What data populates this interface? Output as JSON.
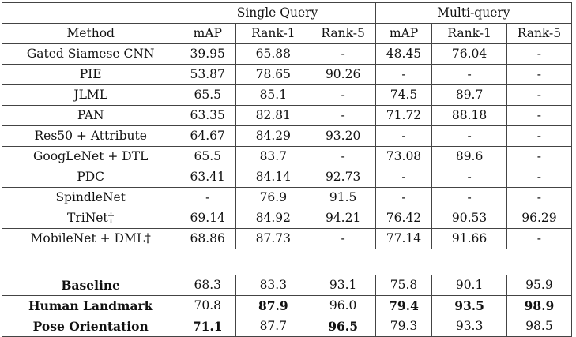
{
  "header": {
    "group1": "Single Query",
    "group2": "Multi-query",
    "method": "Method",
    "cols": [
      "mAP",
      "Rank-1",
      "Rank-5",
      "mAP",
      "Rank-1",
      "Rank-5"
    ]
  },
  "rows": [
    {
      "method": "Gated Siamese CNN",
      "values": [
        "39.95",
        "65.88",
        "-",
        "48.45",
        "76.04",
        "-"
      ]
    },
    {
      "method": "PIE",
      "values": [
        "53.87",
        "78.65",
        "90.26",
        "-",
        "-",
        "-"
      ]
    },
    {
      "method": "JLML",
      "values": [
        "65.5",
        "85.1",
        "-",
        "74.5",
        "89.7",
        "-"
      ]
    },
    {
      "method": "PAN",
      "values": [
        "63.35",
        "82.81",
        "-",
        "71.72",
        "88.18",
        "-"
      ]
    },
    {
      "method": "Res50 + Attribute",
      "values": [
        "64.67",
        "84.29",
        "93.20",
        "-",
        "-",
        "-"
      ]
    },
    {
      "method": "GoogLeNet + DTL",
      "values": [
        "65.5",
        "83.7",
        "-",
        "73.08",
        "89.6",
        "-"
      ]
    },
    {
      "method": "PDC",
      "values": [
        "63.41",
        "84.14",
        "92.73",
        "-",
        "-",
        "-"
      ]
    },
    {
      "method": "SpindleNet",
      "values": [
        "-",
        "76.9",
        "91.5",
        "-",
        "-",
        "-"
      ]
    },
    {
      "method": "TriNet†",
      "values": [
        "69.14",
        "84.92",
        "94.21",
        "76.42",
        "90.53",
        "96.29"
      ]
    },
    {
      "method": "MobileNet + DML†",
      "values": [
        "68.86",
        "87.73",
        "-",
        "77.14",
        "91.66",
        "-"
      ]
    }
  ],
  "ours": [
    {
      "method": "Baseline",
      "values": [
        "68.3",
        "83.3",
        "93.1",
        "75.8",
        "90.1",
        "95.9"
      ],
      "bold": [
        false,
        false,
        false,
        false,
        false,
        false
      ]
    },
    {
      "method": "Human Landmark",
      "values": [
        "70.8",
        "87.9",
        "96.0",
        "79.4",
        "93.5",
        "98.9"
      ],
      "bold": [
        false,
        true,
        false,
        true,
        true,
        true
      ]
    },
    {
      "method": "Pose Orientation",
      "values": [
        "71.1",
        "87.7",
        "96.5",
        "79.3",
        "93.3",
        "98.5"
      ],
      "bold": [
        true,
        false,
        true,
        false,
        false,
        false
      ]
    }
  ]
}
